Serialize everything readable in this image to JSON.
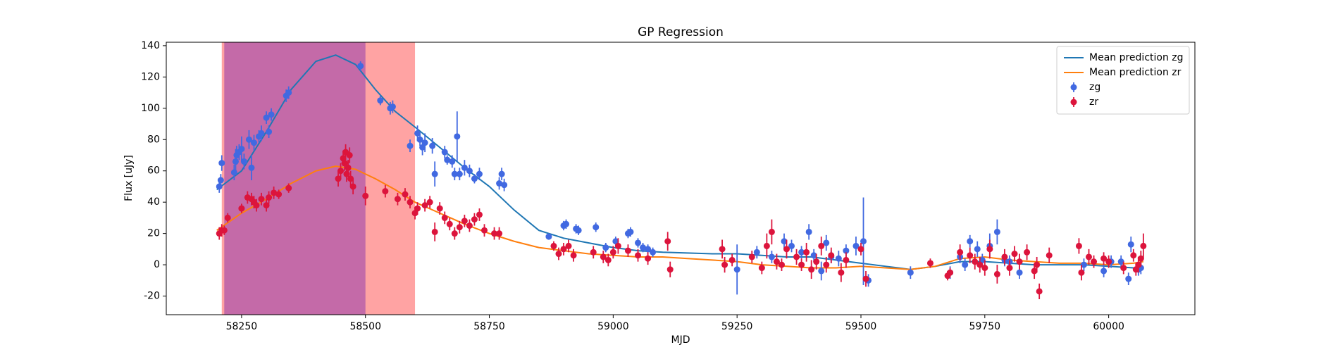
{
  "chart_data": {
    "type": "errorbar",
    "title": "GP Regression",
    "x_label": "MJD",
    "y_label": "Flux [uJy]",
    "xlim": [
      58098,
      60174
    ],
    "ylim": [
      -31.9,
      142.2
    ],
    "xticks": [
      58250,
      58500,
      58750,
      59000,
      59250,
      59500,
      59750,
      60000
    ],
    "yticks": [
      -20,
      0,
      20,
      40,
      60,
      80,
      100,
      120,
      140
    ],
    "legend": "upper right",
    "spans": [
      {
        "x0": 58210,
        "x1": 58600,
        "color": "#ffa3a3"
      },
      {
        "x0": 58215,
        "x1": 58500,
        "color": "#c46aa8"
      }
    ],
    "series": [
      {
        "name": "Mean prediction zg",
        "type": "line",
        "color": "#1f77b4",
        "x": [
          58200,
          58250,
          58300,
          58350,
          58400,
          58440,
          58480,
          58520,
          58560,
          58600,
          58650,
          58700,
          58750,
          58800,
          58850,
          58900,
          58950,
          59000,
          59050,
          59100,
          59150,
          59200,
          59250,
          59300,
          59350,
          59400,
          59450,
          59500,
          59550,
          59600,
          59650,
          59700,
          59750,
          59800,
          59850,
          59900,
          59950,
          60000,
          60050,
          60070
        ],
        "values": [
          48,
          60,
          85,
          112,
          130,
          134,
          128,
          112,
          98,
          88,
          75,
          62,
          50,
          35,
          22,
          17,
          14,
          11,
          9,
          8,
          7.5,
          7,
          7,
          6,
          5,
          5,
          3,
          1,
          -1,
          -3,
          -1,
          2,
          2,
          1,
          0,
          0,
          0,
          -1,
          -2,
          -2
        ]
      },
      {
        "name": "Mean prediction zr",
        "type": "line",
        "color": "#ff7f0e",
        "x": [
          58200,
          58250,
          58300,
          58350,
          58400,
          58440,
          58480,
          58520,
          58560,
          58600,
          58650,
          58700,
          58750,
          58800,
          58850,
          58900,
          58950,
          59000,
          59050,
          59100,
          59150,
          59200,
          59250,
          59300,
          59350,
          59400,
          59450,
          59500,
          59550,
          59600,
          59650,
          59700,
          59750,
          59800,
          59850,
          59900,
          59950,
          60000,
          60050,
          60070
        ],
        "values": [
          22,
          33,
          42,
          52,
          60,
          63,
          61,
          55,
          48,
          40,
          33,
          26,
          20,
          15,
          11,
          9,
          7,
          6,
          5,
          5,
          4,
          3,
          2,
          0,
          -1,
          -2,
          -2,
          -1,
          -2,
          -3,
          -1,
          4,
          5,
          3,
          2,
          1,
          1,
          0,
          1,
          2
        ]
      },
      {
        "name": "zg",
        "type": "errorbar",
        "color": "#4169e1",
        "x": [
          58205,
          58208,
          58210,
          58235,
          58238,
          58240,
          58245,
          58250,
          58255,
          58265,
          58270,
          58275,
          58285,
          58290,
          58300,
          58305,
          58310,
          58340,
          58345,
          58490,
          58530,
          58550,
          58555,
          58590,
          58605,
          58610,
          58615,
          58620,
          58635,
          58640,
          58660,
          58665,
          58675,
          58680,
          58685,
          58690,
          58700,
          58710,
          58720,
          58730,
          58770,
          58775,
          58780,
          58870,
          58900,
          58905,
          58925,
          58930,
          58965,
          58985,
          59005,
          59030,
          59035,
          59050,
          59060,
          59070,
          59080,
          59250,
          59290,
          59320,
          59345,
          59360,
          59380,
          59395,
          59405,
          59420,
          59430,
          59440,
          59455,
          59470,
          59490,
          59505,
          59515,
          59600,
          59680,
          59700,
          59710,
          59720,
          59735,
          59745,
          59760,
          59775,
          59790,
          59800,
          59820,
          59950,
          59990,
          60005,
          60025,
          60040,
          60045,
          60060,
          60065
        ],
        "values": [
          50,
          54,
          65,
          59,
          66,
          70,
          72,
          74,
          66,
          80,
          62,
          78,
          82,
          84,
          94,
          85,
          96,
          108,
          110,
          127,
          105,
          100,
          101,
          76,
          84,
          80,
          75,
          78,
          76,
          58,
          72,
          67,
          66,
          58,
          82,
          58,
          62,
          60,
          55,
          58,
          52,
          58,
          51,
          18,
          25,
          26,
          23,
          22,
          24,
          11,
          15,
          20,
          21,
          14,
          11,
          10,
          8,
          -3,
          8,
          5,
          15,
          12,
          8,
          21,
          6,
          -4,
          14,
          5,
          4,
          9,
          12,
          15,
          -10,
          -5,
          -5,
          5,
          0,
          15,
          10,
          3,
          12,
          21,
          3,
          2,
          -5,
          0,
          -4,
          2,
          2,
          -9,
          13,
          -3,
          -2
        ],
        "errors": [
          4,
          4,
          5,
          5,
          8,
          6,
          5,
          8,
          5,
          6,
          8,
          5,
          4,
          5,
          4,
          4,
          4,
          4,
          4,
          3,
          3,
          4,
          4,
          4,
          5,
          4,
          5,
          6,
          5,
          8,
          4,
          3,
          4,
          4,
          16,
          4,
          5,
          4,
          3,
          4,
          4,
          4,
          4,
          2,
          3,
          3,
          3,
          3,
          3,
          3,
          3,
          3,
          3,
          3,
          3,
          3,
          3,
          16,
          4,
          4,
          5,
          4,
          4,
          5,
          4,
          6,
          5,
          4,
          5,
          4,
          6,
          28,
          4,
          4,
          4,
          4,
          4,
          4,
          5,
          4,
          8,
          8,
          4,
          4,
          4,
          4,
          4,
          4,
          4,
          4,
          5,
          4,
          4
        ]
      },
      {
        "name": "zr",
        "type": "errorbar",
        "color": "#dc143c",
        "x": [
          58205,
          58210,
          58215,
          58222,
          58250,
          58262,
          58270,
          58275,
          58280,
          58290,
          58300,
          58305,
          58315,
          58325,
          58345,
          58445,
          58450,
          58455,
          58458,
          58460,
          58462,
          58465,
          58468,
          58470,
          58475,
          58500,
          58540,
          58565,
          58580,
          58590,
          58600,
          58605,
          58620,
          58630,
          58640,
          58650,
          58660,
          58670,
          58680,
          58690,
          58700,
          58710,
          58720,
          58730,
          58740,
          58760,
          58770,
          58880,
          58890,
          58900,
          58910,
          58920,
          58960,
          58980,
          58990,
          59000,
          59010,
          59030,
          59050,
          59070,
          59110,
          59115,
          59220,
          59225,
          59240,
          59280,
          59300,
          59310,
          59320,
          59330,
          59340,
          59350,
          59370,
          59380,
          59390,
          59400,
          59410,
          59420,
          59430,
          59440,
          59460,
          59470,
          59500,
          59510,
          59640,
          59675,
          59680,
          59700,
          59720,
          59730,
          59740,
          59750,
          59760,
          59775,
          59790,
          59800,
          59810,
          59820,
          59835,
          59850,
          59855,
          59860,
          59880,
          59940,
          59945,
          59960,
          59970,
          59990,
          60000,
          60030,
          60050,
          60055,
          60060,
          60065,
          60070
        ],
        "values": [
          20,
          22,
          22,
          30,
          36,
          43,
          42,
          40,
          38,
          42,
          38,
          43,
          46,
          45,
          49,
          55,
          60,
          68,
          65,
          72,
          58,
          62,
          70,
          55,
          50,
          44,
          47,
          42,
          45,
          40,
          33,
          36,
          38,
          40,
          21,
          36,
          30,
          26,
          20,
          24,
          28,
          25,
          29,
          32,
          22,
          20,
          20,
          12,
          7,
          10,
          12,
          6,
          8,
          5,
          3,
          8,
          12,
          9,
          6,
          4,
          15,
          -3,
          10,
          0,
          3,
          5,
          -2,
          12,
          21,
          2,
          0,
          10,
          5,
          0,
          8,
          -3,
          2,
          12,
          0,
          6,
          -5,
          3,
          10,
          -9,
          1,
          -7,
          -5,
          8,
          6,
          2,
          0,
          -2,
          10,
          -6,
          5,
          -2,
          7,
          2,
          8,
          -4,
          0,
          -17,
          6,
          12,
          -5,
          5,
          2,
          4,
          2,
          -2,
          6,
          -3,
          0,
          4,
          12
        ],
        "errors": [
          4,
          4,
          3,
          3,
          3,
          4,
          4,
          4,
          4,
          4,
          4,
          4,
          4,
          3,
          3,
          5,
          5,
          5,
          5,
          5,
          5,
          5,
          5,
          5,
          5,
          6,
          4,
          4,
          4,
          4,
          4,
          4,
          4,
          4,
          6,
          4,
          4,
          4,
          4,
          4,
          4,
          4,
          4,
          4,
          4,
          4,
          4,
          3,
          4,
          4,
          4,
          4,
          4,
          4,
          4,
          4,
          5,
          4,
          4,
          4,
          6,
          5,
          6,
          5,
          4,
          4,
          4,
          8,
          8,
          5,
          4,
          6,
          5,
          4,
          6,
          6,
          5,
          6,
          5,
          5,
          6,
          5,
          4,
          5,
          3,
          3,
          3,
          5,
          5,
          5,
          5,
          5,
          6,
          6,
          5,
          5,
          5,
          5,
          5,
          5,
          5,
          5,
          5,
          5,
          5,
          5,
          4,
          4,
          4,
          4,
          4,
          4,
          5,
          5,
          8
        ]
      }
    ]
  }
}
